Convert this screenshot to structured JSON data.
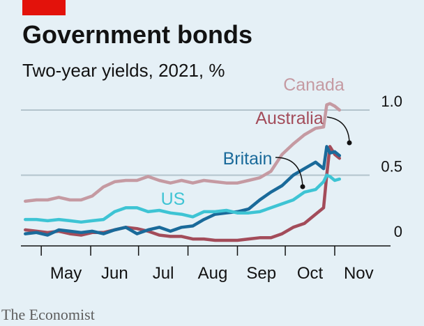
{
  "header": {
    "title": "Government bonds",
    "subtitle": "Two-year yields, 2021, %"
  },
  "source": "The Economist",
  "colors": {
    "background": "#e5f0f6",
    "accent_red": "#e3120b",
    "gridline": "#b3c3cc",
    "axis": "#121212"
  },
  "chart_data": {
    "type": "line",
    "title": "Government bonds",
    "subtitle": "Two-year yields, 2021, %",
    "x_range": [
      "2021-04-20",
      "2021-11-15"
    ],
    "ylim": [
      -0.05,
      1.1
    ],
    "y_ticks": [
      {
        "value": 0,
        "label": "0"
      },
      {
        "value": 0.5,
        "label": "0.5"
      },
      {
        "value": 1.0,
        "label": "1.0"
      }
    ],
    "x_ticks": [
      {
        "date": "2021-05-01",
        "label": "May"
      },
      {
        "date": "2021-06-01",
        "label": "Jun"
      },
      {
        "date": "2021-07-01",
        "label": "Jul"
      },
      {
        "date": "2021-08-01",
        "label": "Aug"
      },
      {
        "date": "2021-09-01",
        "label": "Sep"
      },
      {
        "date": "2021-10-01",
        "label": "Oct"
      },
      {
        "date": "2021-11-01",
        "label": "Nov"
      }
    ],
    "grid": true,
    "series": [
      {
        "name": "Canada",
        "color": "#c59aa2",
        "points": [
          [
            "2021-04-21",
            0.3
          ],
          [
            "2021-04-28",
            0.31
          ],
          [
            "2021-05-05",
            0.31
          ],
          [
            "2021-05-12",
            0.33
          ],
          [
            "2021-05-19",
            0.31
          ],
          [
            "2021-05-26",
            0.31
          ],
          [
            "2021-06-02",
            0.34
          ],
          [
            "2021-06-09",
            0.41
          ],
          [
            "2021-06-16",
            0.45
          ],
          [
            "2021-06-23",
            0.46
          ],
          [
            "2021-06-30",
            0.46
          ],
          [
            "2021-07-07",
            0.49
          ],
          [
            "2021-07-14",
            0.46
          ],
          [
            "2021-07-21",
            0.44
          ],
          [
            "2021-07-28",
            0.46
          ],
          [
            "2021-08-04",
            0.44
          ],
          [
            "2021-08-11",
            0.46
          ],
          [
            "2021-08-18",
            0.45
          ],
          [
            "2021-08-25",
            0.44
          ],
          [
            "2021-09-01",
            0.44
          ],
          [
            "2021-09-08",
            0.46
          ],
          [
            "2021-09-15",
            0.48
          ],
          [
            "2021-09-22",
            0.53
          ],
          [
            "2021-09-29",
            0.66
          ],
          [
            "2021-10-06",
            0.74
          ],
          [
            "2021-10-13",
            0.81
          ],
          [
            "2021-10-20",
            0.86
          ],
          [
            "2021-10-25",
            0.87
          ],
          [
            "2021-10-27",
            1.04
          ],
          [
            "2021-10-29",
            1.05
          ],
          [
            "2021-11-01",
            1.03
          ],
          [
            "2021-11-04",
            1.0
          ]
        ]
      },
      {
        "name": "Australia",
        "color": "#a34c5a",
        "points": [
          [
            "2021-04-21",
            0.08
          ],
          [
            "2021-04-28",
            0.07
          ],
          [
            "2021-05-05",
            0.06
          ],
          [
            "2021-05-12",
            0.07
          ],
          [
            "2021-05-19",
            0.05
          ],
          [
            "2021-05-26",
            0.04
          ],
          [
            "2021-06-02",
            0.06
          ],
          [
            "2021-06-09",
            0.06
          ],
          [
            "2021-06-16",
            0.08
          ],
          [
            "2021-06-23",
            0.1
          ],
          [
            "2021-06-30",
            0.09
          ],
          [
            "2021-07-07",
            0.07
          ],
          [
            "2021-07-14",
            0.04
          ],
          [
            "2021-07-21",
            0.03
          ],
          [
            "2021-07-28",
            0.03
          ],
          [
            "2021-08-04",
            0.01
          ],
          [
            "2021-08-11",
            0.01
          ],
          [
            "2021-08-18",
            0.0
          ],
          [
            "2021-08-25",
            0.0
          ],
          [
            "2021-09-01",
            0.0
          ],
          [
            "2021-09-08",
            0.01
          ],
          [
            "2021-09-15",
            0.02
          ],
          [
            "2021-09-22",
            0.02
          ],
          [
            "2021-09-29",
            0.05
          ],
          [
            "2021-10-06",
            0.1
          ],
          [
            "2021-10-13",
            0.13
          ],
          [
            "2021-10-20",
            0.2
          ],
          [
            "2021-10-25",
            0.25
          ],
          [
            "2021-10-27",
            0.5
          ],
          [
            "2021-10-29",
            0.72
          ],
          [
            "2021-11-01",
            0.66
          ],
          [
            "2021-11-04",
            0.63
          ]
        ]
      },
      {
        "name": "Britain",
        "color": "#1a6a9a",
        "points": [
          [
            "2021-04-21",
            0.05
          ],
          [
            "2021-04-28",
            0.06
          ],
          [
            "2021-05-05",
            0.04
          ],
          [
            "2021-05-12",
            0.08
          ],
          [
            "2021-05-19",
            0.07
          ],
          [
            "2021-05-26",
            0.06
          ],
          [
            "2021-06-02",
            0.07
          ],
          [
            "2021-06-09",
            0.05
          ],
          [
            "2021-06-16",
            0.08
          ],
          [
            "2021-06-23",
            0.1
          ],
          [
            "2021-06-30",
            0.05
          ],
          [
            "2021-07-07",
            0.08
          ],
          [
            "2021-07-14",
            0.1
          ],
          [
            "2021-07-21",
            0.07
          ],
          [
            "2021-07-28",
            0.1
          ],
          [
            "2021-08-04",
            0.11
          ],
          [
            "2021-08-11",
            0.16
          ],
          [
            "2021-08-18",
            0.2
          ],
          [
            "2021-08-25",
            0.21
          ],
          [
            "2021-09-01",
            0.22
          ],
          [
            "2021-09-08",
            0.24
          ],
          [
            "2021-09-15",
            0.31
          ],
          [
            "2021-09-22",
            0.37
          ],
          [
            "2021-09-29",
            0.42
          ],
          [
            "2021-10-06",
            0.5
          ],
          [
            "2021-10-13",
            0.55
          ],
          [
            "2021-10-20",
            0.6
          ],
          [
            "2021-10-25",
            0.55
          ],
          [
            "2021-10-27",
            0.72
          ],
          [
            "2021-10-29",
            0.67
          ],
          [
            "2021-11-01",
            0.68
          ],
          [
            "2021-11-04",
            0.65
          ]
        ]
      },
      {
        "name": "US",
        "color": "#3ec4d4",
        "points": [
          [
            "2021-04-21",
            0.16
          ],
          [
            "2021-04-28",
            0.16
          ],
          [
            "2021-05-05",
            0.15
          ],
          [
            "2021-05-12",
            0.16
          ],
          [
            "2021-05-19",
            0.15
          ],
          [
            "2021-05-26",
            0.14
          ],
          [
            "2021-06-02",
            0.15
          ],
          [
            "2021-06-09",
            0.16
          ],
          [
            "2021-06-16",
            0.22
          ],
          [
            "2021-06-23",
            0.25
          ],
          [
            "2021-06-30",
            0.25
          ],
          [
            "2021-07-07",
            0.22
          ],
          [
            "2021-07-14",
            0.23
          ],
          [
            "2021-07-21",
            0.21
          ],
          [
            "2021-07-28",
            0.2
          ],
          [
            "2021-08-04",
            0.18
          ],
          [
            "2021-08-11",
            0.22
          ],
          [
            "2021-08-18",
            0.22
          ],
          [
            "2021-08-25",
            0.23
          ],
          [
            "2021-09-01",
            0.21
          ],
          [
            "2021-09-08",
            0.21
          ],
          [
            "2021-09-15",
            0.22
          ],
          [
            "2021-09-22",
            0.25
          ],
          [
            "2021-09-29",
            0.28
          ],
          [
            "2021-10-06",
            0.31
          ],
          [
            "2021-10-13",
            0.37
          ],
          [
            "2021-10-20",
            0.39
          ],
          [
            "2021-10-25",
            0.45
          ],
          [
            "2021-10-27",
            0.5
          ],
          [
            "2021-10-29",
            0.49
          ],
          [
            "2021-11-01",
            0.46
          ],
          [
            "2021-11-04",
            0.47
          ]
        ]
      }
    ]
  }
}
